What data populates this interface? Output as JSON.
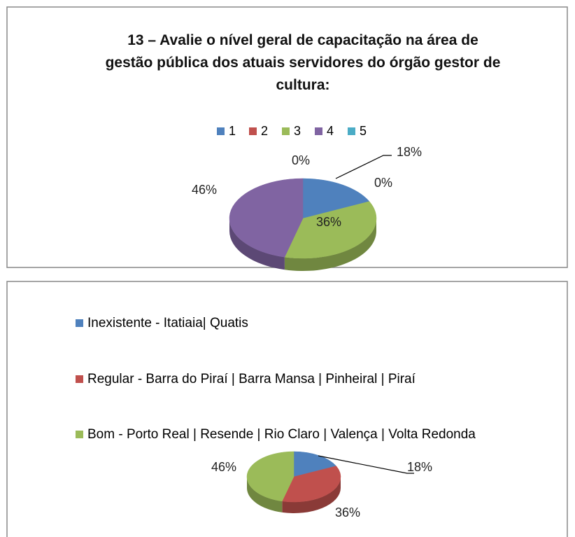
{
  "chart_data": [
    {
      "type": "pie",
      "title": "13 – Avalie o nível geral de capacitação na área de gestão pública dos atuais servidores do órgão gestor de cultura:",
      "categories": [
        "1",
        "2",
        "3",
        "4",
        "5"
      ],
      "values": [
        18,
        0,
        36,
        46,
        0
      ],
      "value_labels": [
        "18%",
        "0%",
        "36%",
        "46%",
        "0%"
      ],
      "colors": [
        "#4f81bd",
        "#c0504d",
        "#9bbb59",
        "#8064a2",
        "#4bacc6"
      ],
      "legend": "top"
    },
    {
      "type": "pie",
      "categories": [
        "Inexistente - Itatiaia| Quatis",
        "Regular - Barra do Piraí | Barra Mansa | Pinheiral | Piraí",
        "Bom - Porto Real | Resende | Rio Claro | Valença | Volta Redonda"
      ],
      "values": [
        18,
        36,
        46
      ],
      "value_labels": [
        "18%",
        "36%",
        "46%"
      ],
      "colors": [
        "#4f81bd",
        "#c0504d",
        "#9bbb59"
      ],
      "legend": "left"
    }
  ]
}
